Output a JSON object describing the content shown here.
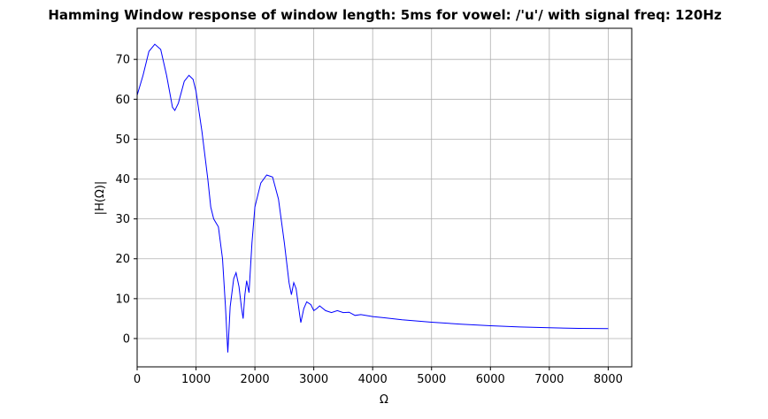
{
  "chart_data": {
    "type": "line",
    "title": "Hamming Window response of window length: 5ms  for vowel: /'u'/ with signal freq: 120Hz",
    "x_label": "Ω",
    "y_label": "|H(Ω)|",
    "series": [
      {
        "color": "#0000ff",
        "x": [
          0,
          100,
          200,
          300,
          400,
          500,
          600,
          640,
          700,
          800,
          880,
          950,
          1000,
          1100,
          1200,
          1250,
          1300,
          1380,
          1450,
          1500,
          1540,
          1580,
          1640,
          1680,
          1730,
          1770,
          1800,
          1830,
          1860,
          1900,
          1950,
          2000,
          2100,
          2200,
          2300,
          2400,
          2500,
          2580,
          2620,
          2660,
          2700,
          2760,
          2780,
          2830,
          2880,
          2950,
          3000,
          3050,
          3100,
          3200,
          3300,
          3400,
          3500,
          3600,
          3700,
          3800,
          4000,
          4200,
          4500,
          5000,
          5500,
          6000,
          6500,
          7000,
          7500,
          8000
        ],
        "values": [
          61,
          66,
          72,
          73.8,
          72.5,
          66,
          58,
          57.2,
          59,
          64.5,
          66,
          65,
          62,
          52,
          40,
          33,
          30,
          28,
          20,
          8,
          -3.5,
          8,
          15,
          16.5,
          13,
          8,
          5,
          11,
          14.5,
          11.5,
          24,
          33,
          39,
          41,
          40.5,
          35,
          24,
          14,
          11,
          14,
          12.5,
          6,
          4,
          7.5,
          9.2,
          8.5,
          7,
          7.5,
          8.2,
          7,
          6.5,
          7,
          6.5,
          6.6,
          5.8,
          6,
          5.5,
          5.2,
          4.7,
          4.1,
          3.6,
          3.2,
          2.9,
          2.7,
          2.55,
          2.5
        ]
      }
    ],
    "xlim": [
      0,
      8400
    ],
    "xticks": [
      0,
      1000,
      2000,
      3000,
      4000,
      5000,
      6000,
      7000,
      8000
    ],
    "ylim": [
      -7.1,
      77.8
    ],
    "yticks": [
      0,
      10,
      20,
      30,
      40,
      50,
      60,
      70
    ],
    "grid": true
  }
}
